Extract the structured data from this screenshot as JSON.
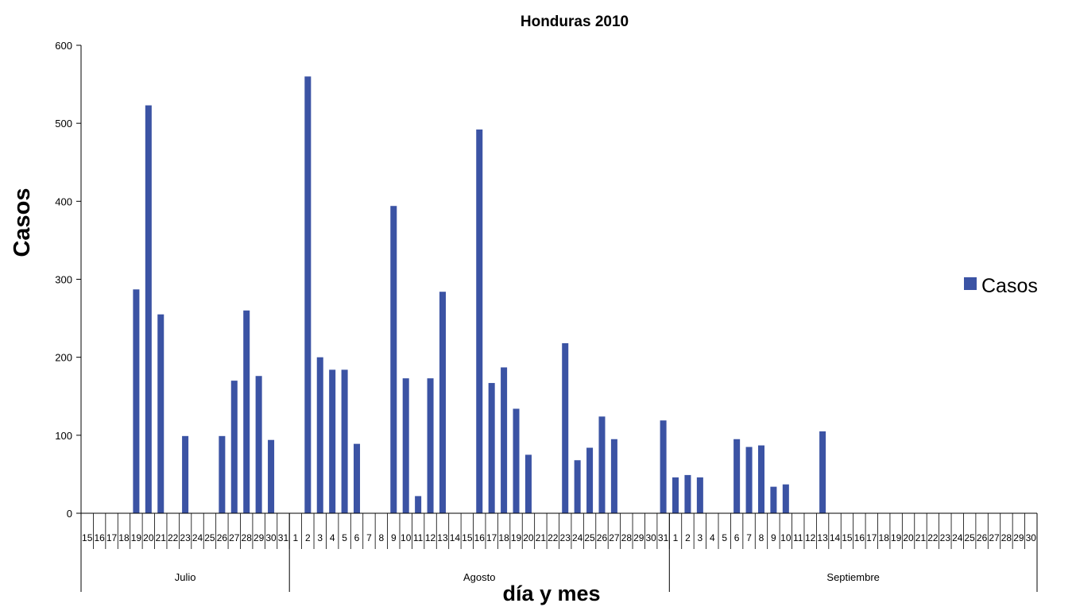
{
  "chart_data": {
    "type": "bar",
    "title": "Honduras 2010",
    "xlabel": "día y mes",
    "ylabel": "Casos",
    "ylim": [
      0,
      600
    ],
    "yticks": [
      0,
      100,
      200,
      300,
      400,
      500,
      600
    ],
    "grid": false,
    "legend": "right",
    "bar_color": "#3B53A4",
    "months": [
      {
        "name": "Julio",
        "days": [
          "15",
          "16",
          "17",
          "18",
          "19",
          "20",
          "21",
          "22",
          "23",
          "24",
          "25",
          "26",
          "27",
          "28",
          "29",
          "30",
          "31"
        ]
      },
      {
        "name": "Agosto",
        "days": [
          "1",
          "2",
          "3",
          "4",
          "5",
          "6",
          "7",
          "8",
          "9",
          "10",
          "11",
          "12",
          "13",
          "14",
          "15",
          "16",
          "17",
          "18",
          "19",
          "20",
          "21",
          "22",
          "23",
          "24",
          "25",
          "26",
          "27",
          "28",
          "29",
          "30",
          "31"
        ]
      },
      {
        "name": "Septiembre",
        "days": [
          "1",
          "2",
          "3",
          "4",
          "5",
          "6",
          "7",
          "8",
          "9",
          "10",
          "11",
          "12",
          "13",
          "14",
          "15",
          "16",
          "17",
          "18",
          "19",
          "20",
          "21",
          "22",
          "23",
          "24",
          "25",
          "26",
          "27",
          "28",
          "29",
          "30"
        ]
      }
    ],
    "series": [
      {
        "name": "Casos",
        "values": [
          0,
          0,
          0,
          0,
          287,
          523,
          255,
          0,
          99,
          0,
          0,
          99,
          170,
          260,
          176,
          94,
          0,
          0,
          560,
          200,
          184,
          184,
          89,
          0,
          0,
          394,
          173,
          22,
          173,
          284,
          0,
          0,
          492,
          167,
          187,
          134,
          75,
          0,
          0,
          218,
          68,
          84,
          124,
          95,
          0,
          0,
          0,
          119,
          46,
          49,
          46,
          0,
          0,
          95,
          85,
          87,
          34,
          37,
          0,
          0,
          105,
          0,
          0,
          0,
          0,
          0,
          0,
          0,
          0,
          0,
          0,
          0,
          0,
          0,
          0,
          0,
          0,
          0
        ]
      }
    ]
  }
}
